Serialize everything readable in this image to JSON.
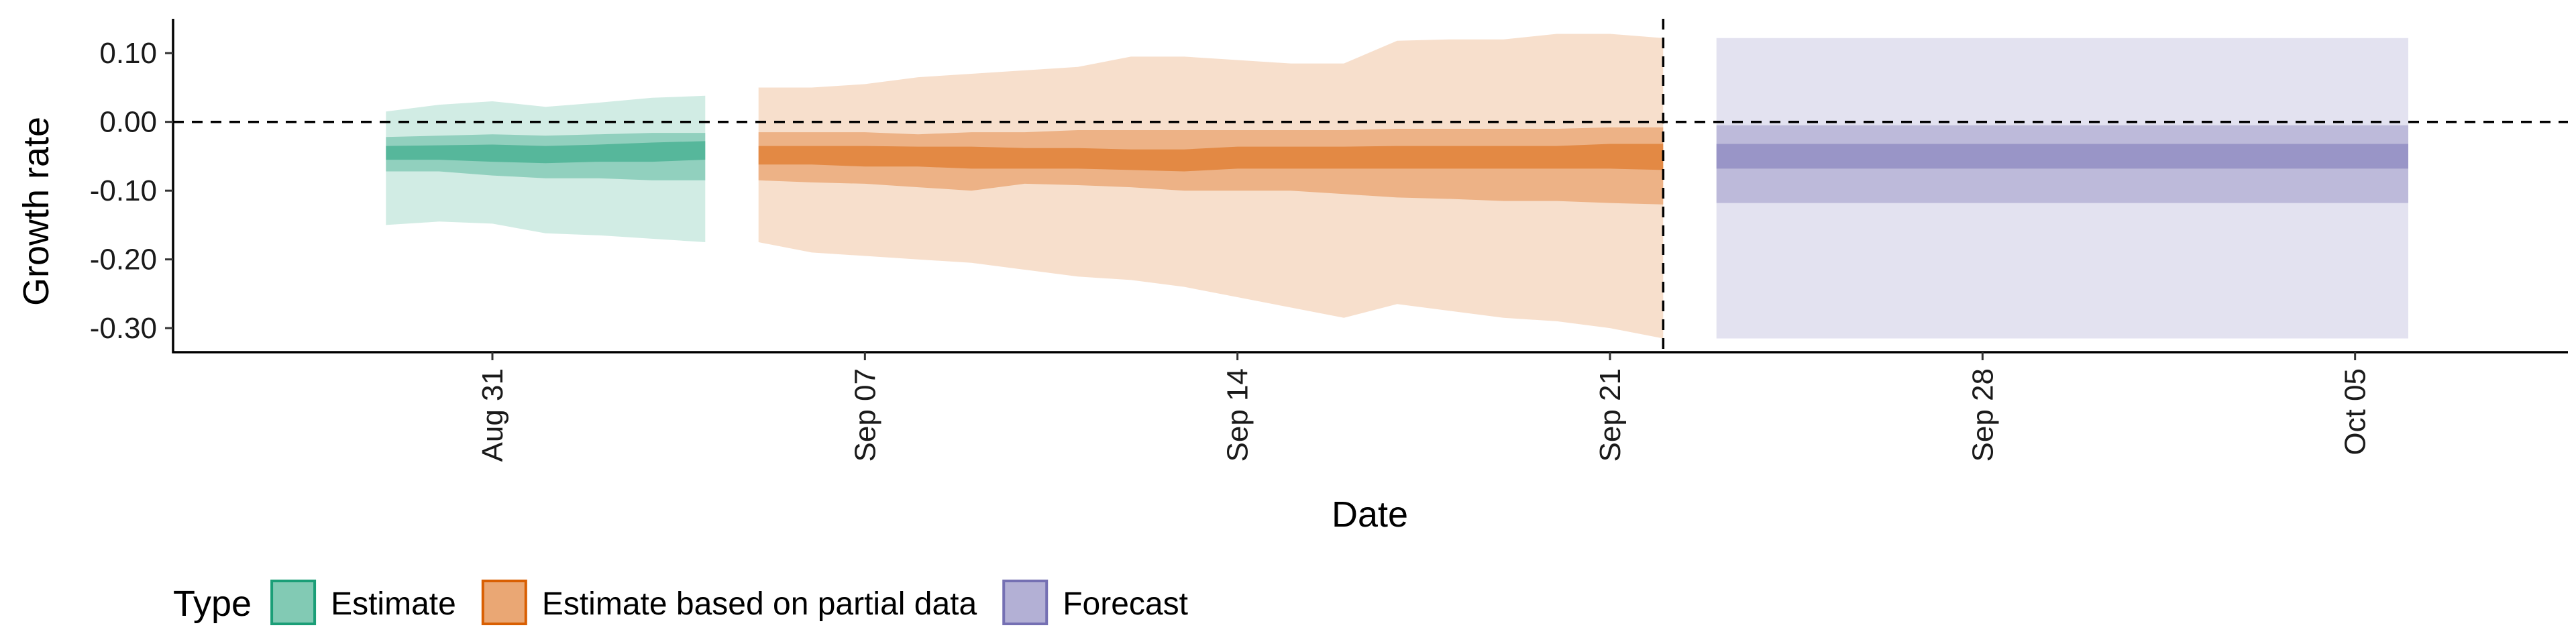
{
  "chart_data": {
    "type": "area",
    "xlabel": "Date",
    "ylabel": "Growth rate",
    "ylim": [
      -0.335,
      0.15
    ],
    "xlim": [
      "2020-08-25",
      "2020-10-09"
    ],
    "y_ticks": [
      0.1,
      0.0,
      -0.1,
      -0.2,
      -0.3
    ],
    "y_tick_labels": [
      "0.10",
      "0.00",
      "-0.10",
      "-0.20",
      "-0.30"
    ],
    "x_ticks": [
      "2020-08-31",
      "2020-09-07",
      "2020-09-14",
      "2020-09-21",
      "2020-09-28",
      "2020-10-05"
    ],
    "x_tick_labels": [
      "Aug 31",
      "Sep 07",
      "Sep 14",
      "Sep 21",
      "Sep 28",
      "Oct 05"
    ],
    "reference_lines": {
      "horizontal_y": 0.0,
      "vertical_x": "2020-09-22"
    },
    "grid": false,
    "legend": {
      "title": "Type",
      "placement": "bottom-left",
      "entries": [
        "Estimate",
        "Estimate based on partial data",
        "Forecast"
      ]
    },
    "colors": {
      "Estimate": "#1b9e77",
      "Estimate based on partial data": "#d95f02",
      "Forecast": "#7570b3"
    },
    "series": [
      {
        "name": "Estimate",
        "x": [
          "2020-08-29",
          "2020-08-30",
          "2020-08-31",
          "2020-09-01",
          "2020-09-02",
          "2020-09-03",
          "2020-09-04"
        ],
        "lower90": [
          -0.15,
          -0.145,
          -0.148,
          -0.162,
          -0.165,
          -0.17,
          -0.175
        ],
        "upper90": [
          0.015,
          0.025,
          0.03,
          0.022,
          0.028,
          0.035,
          0.038
        ],
        "lower50": [
          -0.072,
          -0.072,
          -0.078,
          -0.082,
          -0.082,
          -0.085,
          -0.085
        ],
        "upper50": [
          -0.022,
          -0.02,
          -0.018,
          -0.02,
          -0.018,
          -0.016,
          -0.016
        ],
        "lower20": [
          -0.055,
          -0.055,
          -0.058,
          -0.06,
          -0.058,
          -0.058,
          -0.055
        ],
        "upper20": [
          -0.035,
          -0.034,
          -0.033,
          -0.035,
          -0.033,
          -0.03,
          -0.028
        ]
      },
      {
        "name": "Estimate based on partial data",
        "x": [
          "2020-09-05",
          "2020-09-06",
          "2020-09-07",
          "2020-09-08",
          "2020-09-09",
          "2020-09-10",
          "2020-09-11",
          "2020-09-12",
          "2020-09-13",
          "2020-09-14",
          "2020-09-15",
          "2020-09-16",
          "2020-09-17",
          "2020-09-18",
          "2020-09-19",
          "2020-09-20",
          "2020-09-21",
          "2020-09-22"
        ],
        "lower90": [
          -0.175,
          -0.19,
          -0.195,
          -0.2,
          -0.205,
          -0.215,
          -0.225,
          -0.23,
          -0.24,
          -0.255,
          -0.27,
          -0.285,
          -0.265,
          -0.275,
          -0.285,
          -0.29,
          -0.3,
          -0.315
        ],
        "upper90": [
          0.05,
          0.05,
          0.055,
          0.065,
          0.07,
          0.075,
          0.08,
          0.095,
          0.095,
          0.09,
          0.085,
          0.085,
          0.118,
          0.12,
          0.12,
          0.128,
          0.128,
          0.122
        ],
        "lower50": [
          -0.085,
          -0.088,
          -0.09,
          -0.095,
          -0.1,
          -0.09,
          -0.092,
          -0.095,
          -0.1,
          -0.1,
          -0.1,
          -0.105,
          -0.11,
          -0.112,
          -0.115,
          -0.115,
          -0.118,
          -0.12
        ],
        "upper50": [
          -0.015,
          -0.015,
          -0.015,
          -0.018,
          -0.015,
          -0.015,
          -0.012,
          -0.012,
          -0.012,
          -0.012,
          -0.012,
          -0.012,
          -0.01,
          -0.01,
          -0.01,
          -0.01,
          -0.008,
          -0.008
        ],
        "lower20": [
          -0.062,
          -0.062,
          -0.065,
          -0.065,
          -0.068,
          -0.068,
          -0.068,
          -0.07,
          -0.072,
          -0.068,
          -0.068,
          -0.068,
          -0.068,
          -0.068,
          -0.068,
          -0.068,
          -0.068,
          -0.07
        ],
        "upper20": [
          -0.035,
          -0.035,
          -0.035,
          -0.036,
          -0.036,
          -0.038,
          -0.038,
          -0.04,
          -0.04,
          -0.036,
          -0.036,
          -0.036,
          -0.035,
          -0.035,
          -0.035,
          -0.035,
          -0.032,
          -0.032
        ]
      },
      {
        "name": "Forecast",
        "x": [
          "2020-09-23",
          "2020-10-06"
        ],
        "lower90": [
          -0.315,
          -0.315
        ],
        "upper90": [
          0.122,
          0.122
        ],
        "lower50": [
          -0.118,
          -0.118
        ],
        "upper50": [
          -0.005,
          -0.005
        ],
        "lower20": [
          -0.068,
          -0.068
        ],
        "upper20": [
          -0.032,
          -0.032
        ]
      }
    ]
  }
}
